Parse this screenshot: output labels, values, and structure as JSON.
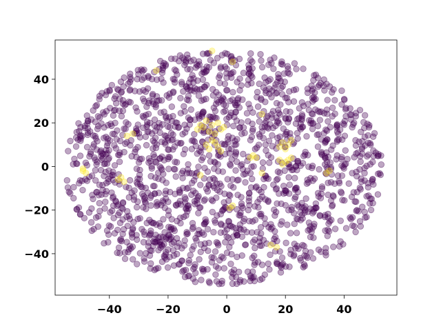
{
  "chart_data": {
    "type": "scatter",
    "title": "",
    "xlabel": "",
    "ylabel": "",
    "xlim": [
      -58.5,
      58
    ],
    "ylim": [
      -59,
      58
    ],
    "xticks": [
      -40,
      -20,
      0,
      20,
      40
    ],
    "yticks": [
      -40,
      -20,
      0,
      20,
      40
    ],
    "xtick_labels": [
      "−40",
      "−20",
      "0",
      "20",
      "40"
    ],
    "ytick_labels": [
      "−40",
      "−20",
      "0",
      "20",
      "40"
    ],
    "grid": false,
    "legend": "none",
    "marker_alpha": 0.35,
    "colors": {
      "class_0": "#440154",
      "class_1": "#fde725"
    },
    "series": [
      {
        "name": "",
        "color": "#440154",
        "distribution": {
          "shape": "filled ellipse",
          "center": [
            0,
            -1
          ],
          "x_extent": [
            -55,
            53
          ],
          "y_extent": [
            -54,
            53
          ],
          "approx_count": 1700
        }
      },
      {
        "name": "",
        "color": "#fde725",
        "points": [
          [
            -8,
            18
          ],
          [
            -5,
            19
          ],
          [
            -3,
            20
          ],
          [
            -10,
            17
          ],
          [
            -6,
            16
          ],
          [
            -2,
            17
          ],
          [
            -7,
            21
          ],
          [
            -4,
            15
          ],
          [
            -9,
            19
          ],
          [
            -1,
            18
          ],
          [
            -5,
            12
          ],
          [
            -3,
            9
          ],
          [
            -7,
            10
          ],
          [
            -2,
            7
          ],
          [
            -6,
            8
          ],
          [
            -4,
            11
          ],
          [
            19,
            11
          ],
          [
            21,
            10
          ],
          [
            18,
            9
          ],
          [
            22,
            12
          ],
          [
            20,
            8
          ],
          [
            18,
            3
          ],
          [
            20,
            2
          ],
          [
            22,
            4
          ],
          [
            19,
            1
          ],
          [
            21,
            3
          ],
          [
            9,
            5
          ],
          [
            10,
            4
          ],
          [
            8,
            4
          ],
          [
            -49,
            -2
          ],
          [
            -48,
            -3
          ],
          [
            -49,
            -1
          ],
          [
            -37,
            -6
          ],
          [
            -35,
            -7
          ],
          [
            -36,
            -5
          ],
          [
            -34,
            14
          ],
          [
            -32,
            15
          ],
          [
            34,
            -3
          ],
          [
            35,
            -2
          ],
          [
            12,
            24
          ],
          [
            -24,
            44
          ],
          [
            -5,
            53
          ],
          [
            2,
            48
          ],
          [
            2,
            -18
          ],
          [
            1,
            -19
          ],
          [
            -9,
            -4
          ],
          [
            15,
            -36
          ],
          [
            17,
            -37
          ],
          [
            12,
            -3
          ]
        ]
      }
    ]
  }
}
